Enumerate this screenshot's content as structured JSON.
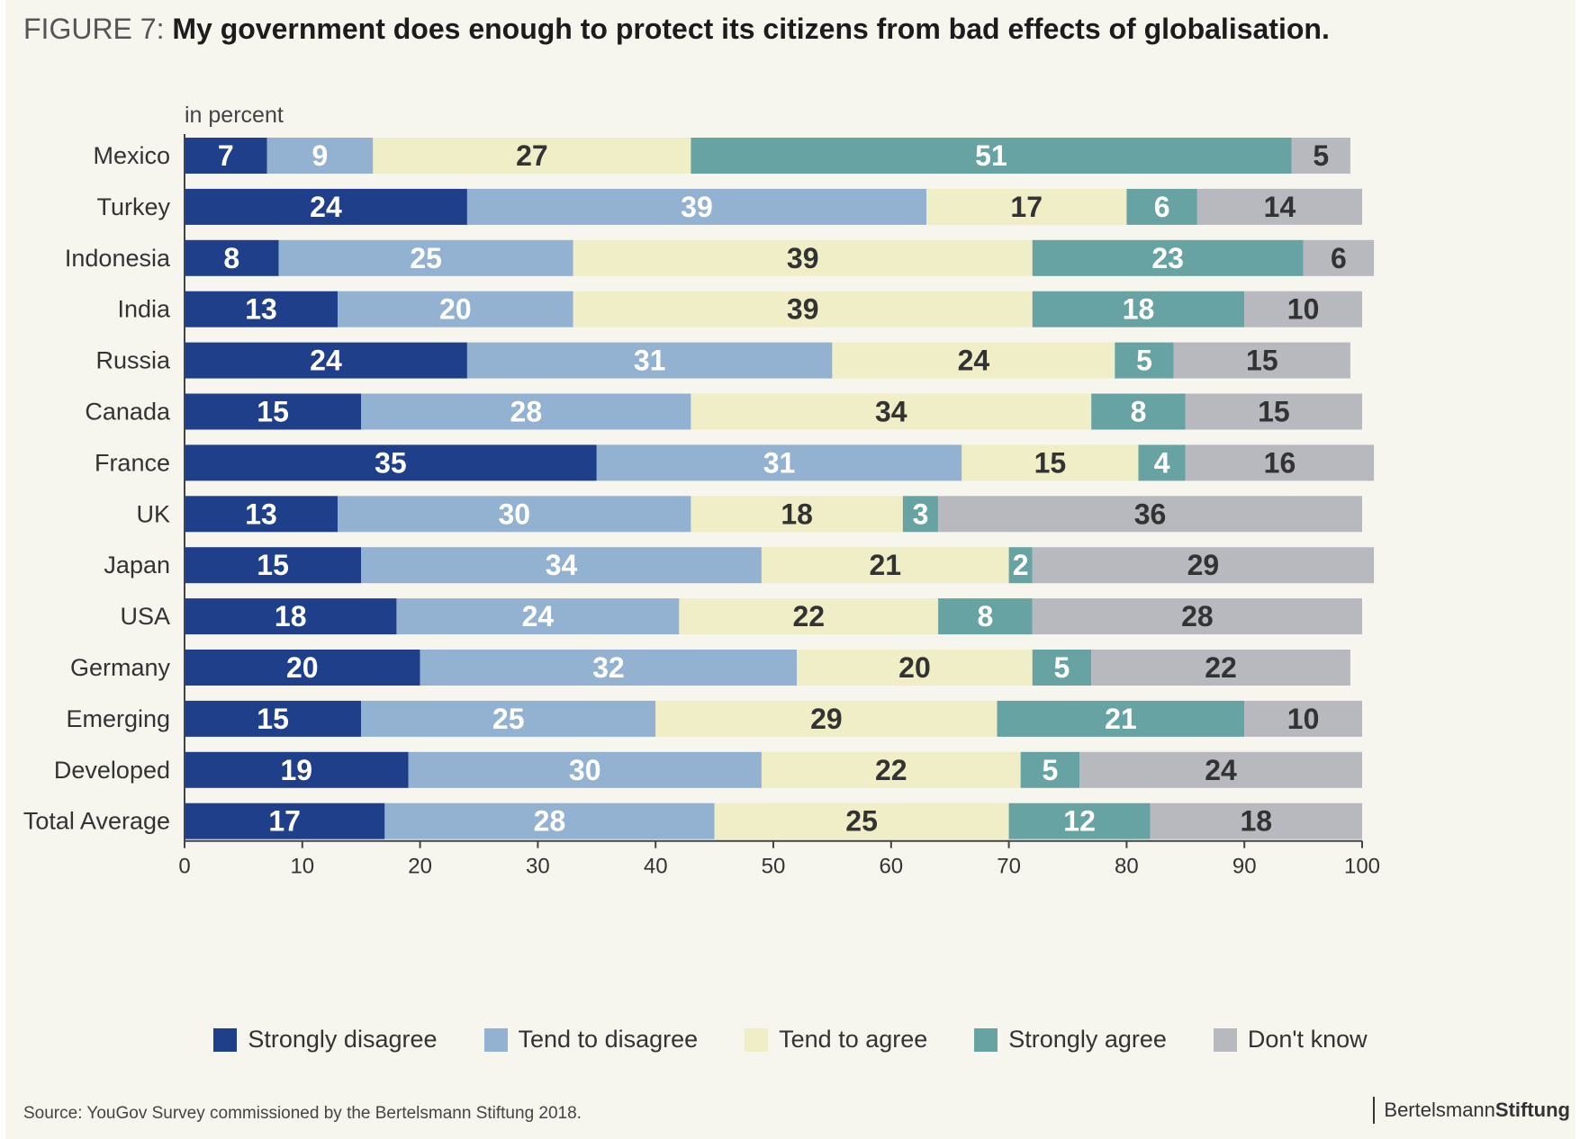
{
  "figure": {
    "prefix": "FIGURE 7:",
    "title": "My government does enough to protect its citizens from bad effects of globalisation.",
    "unit": "in percent",
    "source": "Source: YouGov Survey commissioned by the Bertelsmann Stiftung 2018.",
    "brand_light": "Bertelsmann",
    "brand_bold": "Stiftung"
  },
  "chart_data": {
    "type": "bar",
    "orientation": "horizontal",
    "stacked": true,
    "unit": "in percent",
    "categories": [
      "Mexico",
      "Turkey",
      "Indonesia",
      "India",
      "Russia",
      "Canada",
      "France",
      "UK",
      "Japan",
      "USA",
      "Germany",
      "Emerging",
      "Developed",
      "Total Average"
    ],
    "series": [
      {
        "name": "Strongly disagree",
        "color": "#1f3f8a",
        "text_color": "#ffffff",
        "values": [
          7,
          24,
          8,
          13,
          24,
          15,
          35,
          13,
          15,
          18,
          20,
          15,
          19,
          17
        ]
      },
      {
        "name": "Tend to disagree",
        "color": "#93b1d1",
        "text_color": "#ffffff",
        "values": [
          9,
          39,
          25,
          20,
          31,
          28,
          31,
          30,
          34,
          24,
          32,
          25,
          30,
          28
        ]
      },
      {
        "name": "Tend to agree",
        "color": "#efeec7",
        "text_color": "#333333",
        "values": [
          27,
          17,
          39,
          39,
          24,
          34,
          15,
          18,
          21,
          22,
          20,
          29,
          22,
          25
        ]
      },
      {
        "name": "Strongly agree",
        "color": "#67a3a2",
        "text_color": "#ffffff",
        "values": [
          51,
          6,
          23,
          18,
          5,
          8,
          4,
          3,
          2,
          8,
          5,
          21,
          5,
          12
        ]
      },
      {
        "name": "Don't know",
        "color": "#b7b9bf",
        "text_color": "#333333",
        "values": [
          5,
          14,
          6,
          10,
          15,
          15,
          16,
          36,
          29,
          28,
          22,
          10,
          24,
          18
        ]
      }
    ],
    "xlim": [
      0,
      100
    ],
    "xticks": [
      0,
      10,
      20,
      30,
      40,
      50,
      60,
      70,
      80,
      90,
      100
    ],
    "grid": false,
    "legend": "bottom"
  }
}
